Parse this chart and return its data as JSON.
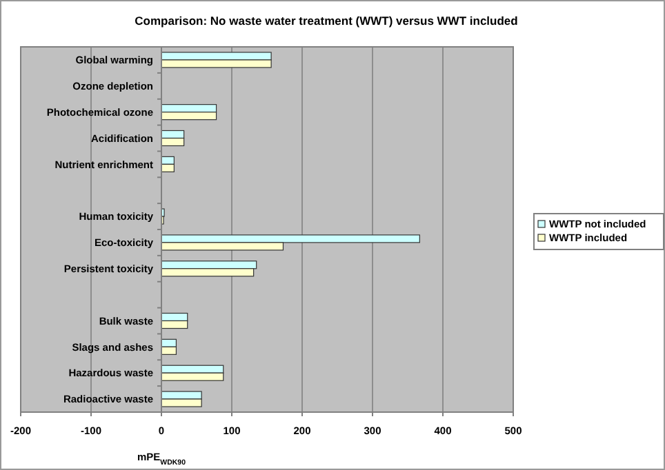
{
  "chart_data": {
    "type": "bar",
    "orientation": "horizontal",
    "title": "Comparison: No waste water treatment (WWT) versus WWT included",
    "xlabel": "mPE$_{WDK90}$",
    "categories": [
      "Global warming",
      "Ozone depletion",
      "Photochemical ozone",
      "Acidification",
      "Nutrient enrichment",
      null,
      "Human toxicity",
      "Eco-toxicity",
      "Persistent toxicity",
      null,
      "Bulk waste",
      "Slags and ashes",
      "Hazardous waste",
      "Radioactive waste"
    ],
    "series": [
      {
        "name": "WWTP not included",
        "color": "#ccffff",
        "values": [
          156,
          0,
          78,
          32,
          18,
          null,
          4,
          367,
          135,
          null,
          37,
          21,
          88,
          57
        ]
      },
      {
        "name": "WWTP included",
        "color": "#ffffcc",
        "values": [
          156,
          0,
          78,
          32,
          18,
          null,
          3,
          173,
          131,
          null,
          37,
          21,
          88,
          57
        ]
      }
    ],
    "xlim": [
      -200,
      500
    ],
    "xticks": [
      -200,
      -100,
      0,
      100,
      200,
      300,
      400,
      500
    ],
    "grid": "x",
    "legend": "right"
  }
}
